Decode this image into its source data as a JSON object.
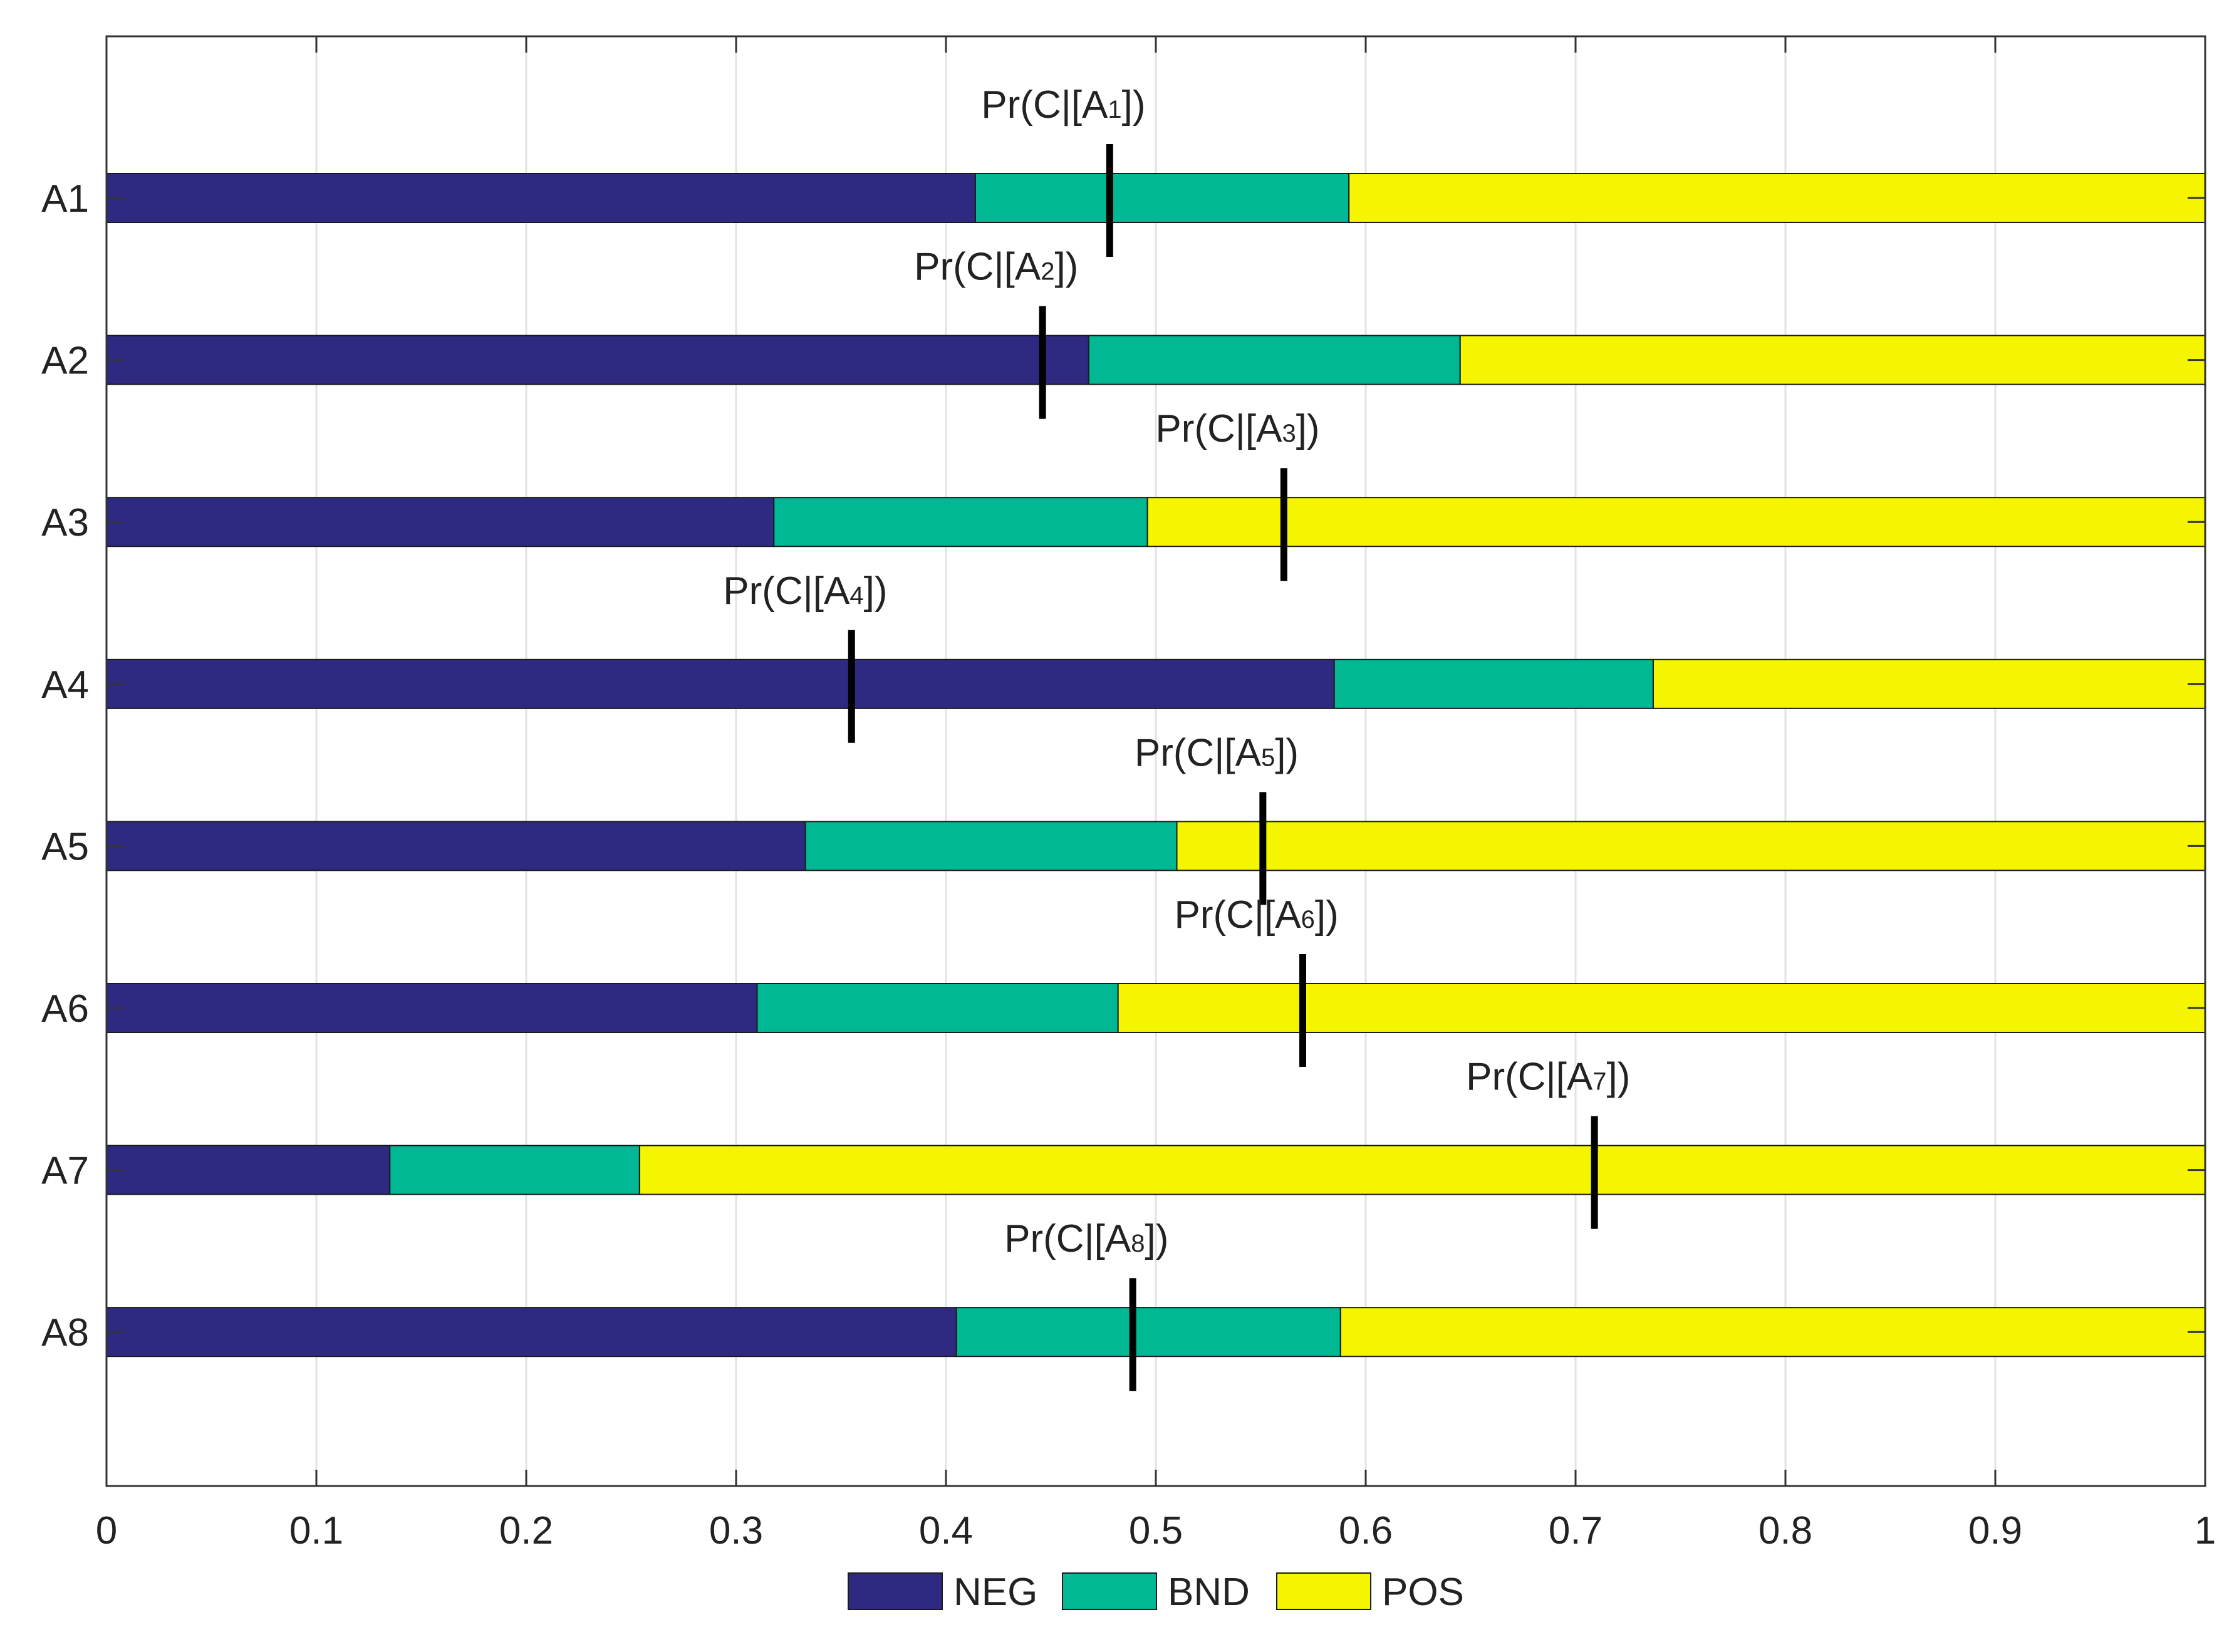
{
  "chart_data": {
    "type": "bar",
    "orientation": "horizontal",
    "stacked": true,
    "title": "",
    "xlabel": "",
    "ylabel": "",
    "xlim": [
      0,
      1
    ],
    "grid": true,
    "x_ticks": [
      0,
      0.1,
      0.2,
      0.3,
      0.4,
      0.5,
      0.6,
      0.7,
      0.8,
      0.9,
      1
    ],
    "x_tick_labels": [
      "0",
      "0.1",
      "0.2",
      "0.3",
      "0.4",
      "0.5",
      "0.6",
      "0.7",
      "0.8",
      "0.9",
      "1"
    ],
    "categories": [
      "A1",
      "A2",
      "A3",
      "A4",
      "A5",
      "A6",
      "A7",
      "A8"
    ],
    "series": [
      {
        "name": "NEG",
        "color": "#2e2a82",
        "values": [
          0.414,
          0.468,
          0.318,
          0.585,
          0.333,
          0.31,
          0.135,
          0.405
        ]
      },
      {
        "name": "BND",
        "color": "#00b894",
        "values": [
          0.178,
          0.177,
          0.178,
          0.152,
          0.177,
          0.172,
          0.119,
          0.183
        ]
      },
      {
        "name": "POS",
        "color": "#f5f500",
        "values": [
          0.408,
          0.355,
          0.504,
          0.263,
          0.49,
          0.518,
          0.746,
          0.412
        ]
      }
    ],
    "markers": [
      {
        "category": "A1",
        "value": 0.478,
        "label_prefix": "Pr(C|[A",
        "label_sub": "1",
        "label_suffix": "])"
      },
      {
        "category": "A2",
        "value": 0.446,
        "label_prefix": "Pr(C|[A",
        "label_sub": "2",
        "label_suffix": "])"
      },
      {
        "category": "A3",
        "value": 0.561,
        "label_prefix": "Pr(C|[A",
        "label_sub": "3",
        "label_suffix": "])"
      },
      {
        "category": "A4",
        "value": 0.355,
        "label_prefix": "Pr(C|[A",
        "label_sub": "4",
        "label_suffix": "])"
      },
      {
        "category": "A5",
        "value": 0.551,
        "label_prefix": "Pr(C|[A",
        "label_sub": "5",
        "label_suffix": "])"
      },
      {
        "category": "A6",
        "value": 0.57,
        "label_prefix": "Pr(C|[A",
        "label_sub": "6",
        "label_suffix": "])"
      },
      {
        "category": "A7",
        "value": 0.709,
        "label_prefix": "Pr(C|[A",
        "label_sub": "7",
        "label_suffix": "])"
      },
      {
        "category": "A8",
        "value": 0.489,
        "label_prefix": "Pr(C|[A",
        "label_sub": "8",
        "label_suffix": "])"
      }
    ],
    "legend": {
      "placement": "bottom-center",
      "entries": [
        "NEG",
        "BND",
        "POS"
      ]
    }
  }
}
